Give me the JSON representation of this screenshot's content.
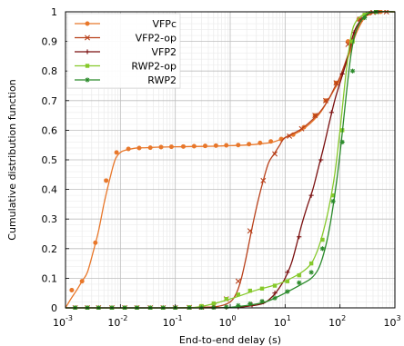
{
  "chart_data": {
    "type": "line",
    "xlabel": "End-to-end delay (s)",
    "ylabel": "Cumulative distribution function",
    "xscale": "log",
    "xlim": [
      0.001,
      1000
    ],
    "ylim": [
      0,
      1
    ],
    "grid": true,
    "legend_position": "top-left",
    "x_ticks": [
      {
        "value": 0.001,
        "base": "10",
        "exp": "-3"
      },
      {
        "value": 0.01,
        "base": "10",
        "exp": "-2"
      },
      {
        "value": 0.1,
        "base": "10",
        "exp": "-1"
      },
      {
        "value": 1,
        "base": "10",
        "exp": "0"
      },
      {
        "value": 10,
        "base": "10",
        "exp": "1"
      },
      {
        "value": 100,
        "base": "10",
        "exp": "2"
      },
      {
        "value": 1000,
        "base": "10",
        "exp": "3"
      }
    ],
    "y_ticks": [
      {
        "value": 0,
        "label": "0"
      },
      {
        "value": 0.1,
        "label": "0.1"
      },
      {
        "value": 0.2,
        "label": "0.2"
      },
      {
        "value": 0.3,
        "label": "0.3"
      },
      {
        "value": 0.4,
        "label": "0.4"
      },
      {
        "value": 0.5,
        "label": "0.5"
      },
      {
        "value": 0.6,
        "label": "0.6"
      },
      {
        "value": 0.7,
        "label": "0.7"
      },
      {
        "value": 0.8,
        "label": "0.8"
      },
      {
        "value": 0.9,
        "label": "0.9"
      },
      {
        "value": 1,
        "label": "1"
      }
    ],
    "series": [
      {
        "name": "VFPc",
        "color": "#e8772a",
        "marker": "circle",
        "x": [
          0.001,
          0.00125,
          0.0016,
          0.002,
          0.0025,
          0.0032,
          0.004,
          0.005,
          0.0063,
          0.008,
          0.01,
          0.0126,
          0.0158,
          0.02,
          0.03,
          0.05,
          0.1,
          0.2,
          0.5,
          1,
          2,
          4,
          6,
          10,
          20,
          40,
          60,
          80,
          100,
          150,
          200,
          300,
          500,
          1000
        ],
        "y": [
          0,
          0.03,
          0.06,
          0.09,
          0.12,
          0.19,
          0.26,
          0.35,
          0.43,
          0.5,
          0.525,
          0.533,
          0.537,
          0.54,
          0.541,
          0.543,
          0.544,
          0.545,
          0.546,
          0.548,
          0.55,
          0.555,
          0.56,
          0.575,
          0.6,
          0.65,
          0.7,
          0.74,
          0.77,
          0.86,
          0.93,
          0.985,
          0.998,
          1.0
        ],
        "markers_x": [
          0.0013,
          0.002,
          0.0035,
          0.0055,
          0.0085,
          0.014,
          0.022,
          0.035,
          0.055,
          0.085,
          0.14,
          0.22,
          0.35,
          0.55,
          0.85,
          1.4,
          2.2,
          3.5,
          5.5,
          8.5,
          14,
          22,
          35,
          55,
          85,
          140,
          220,
          350,
          550
        ],
        "markers_y": [
          0.06,
          0.09,
          0.22,
          0.43,
          0.525,
          0.537,
          0.54,
          0.541,
          0.543,
          0.544,
          0.545,
          0.546,
          0.547,
          0.548,
          0.549,
          0.55,
          0.553,
          0.557,
          0.562,
          0.57,
          0.585,
          0.61,
          0.65,
          0.7,
          0.76,
          0.9,
          0.975,
          0.995,
          1.0
        ]
      },
      {
        "name": "VFP2-op",
        "color": "#b8401a",
        "marker": "x",
        "x": [
          0.001,
          0.01,
          0.1,
          0.3,
          0.6,
          1,
          1.3,
          1.6,
          2,
          2.5,
          3.2,
          4,
          5,
          6.3,
          8,
          10,
          20,
          40,
          60,
          80,
          100,
          150,
          200,
          300,
          500,
          1000
        ],
        "y": [
          0,
          0,
          0,
          0.002,
          0.005,
          0.02,
          0.05,
          0.1,
          0.18,
          0.27,
          0.36,
          0.43,
          0.49,
          0.52,
          0.55,
          0.575,
          0.605,
          0.655,
          0.7,
          0.745,
          0.78,
          0.87,
          0.94,
          0.99,
          1.0,
          1.0
        ],
        "markers_x": [
          0.0015,
          0.0025,
          0.004,
          0.007,
          0.012,
          0.02,
          0.035,
          0.06,
          0.1,
          0.18,
          0.3,
          0.5,
          0.85,
          1.4,
          2.3,
          4,
          6.5,
          12,
          20,
          35,
          55,
          85,
          140,
          230,
          400,
          700
        ],
        "markers_y": [
          0,
          0,
          0,
          0,
          0,
          0,
          0,
          0,
          0,
          0.001,
          0.002,
          0.006,
          0.03,
          0.09,
          0.26,
          0.43,
          0.52,
          0.58,
          0.605,
          0.65,
          0.7,
          0.76,
          0.89,
          0.975,
          0.998,
          1.0
        ]
      },
      {
        "name": "VFP2",
        "color": "#7a0f0f",
        "marker": "plus",
        "x": [
          0.001,
          0.1,
          1,
          2,
          4,
          6,
          8,
          10,
          13,
          16,
          20,
          25,
          32,
          40,
          50,
          63,
          80,
          100,
          130,
          160,
          200,
          300,
          500,
          1000
        ],
        "y": [
          0,
          0,
          0.001,
          0.005,
          0.015,
          0.04,
          0.07,
          0.1,
          0.15,
          0.21,
          0.28,
          0.34,
          0.4,
          0.47,
          0.54,
          0.62,
          0.7,
          0.76,
          0.83,
          0.9,
          0.95,
          0.99,
          1.0,
          1.0
        ],
        "markers_x": [
          0.0015,
          0.0025,
          0.004,
          0.007,
          0.012,
          0.02,
          0.035,
          0.06,
          0.1,
          0.18,
          0.3,
          0.5,
          0.85,
          1.4,
          2.5,
          4,
          6.5,
          11,
          18,
          30,
          45,
          70,
          110,
          180,
          300,
          500
        ],
        "markers_y": [
          0,
          0,
          0,
          0,
          0,
          0,
          0,
          0,
          0,
          0,
          0,
          0,
          0.001,
          0.003,
          0.01,
          0.02,
          0.05,
          0.12,
          0.24,
          0.38,
          0.5,
          0.66,
          0.79,
          0.93,
          0.99,
          1.0
        ]
      },
      {
        "name": "RWP2-op",
        "color": "#86c92b",
        "marker": "square",
        "x": [
          0.001,
          0.1,
          0.3,
          1,
          3,
          6,
          10,
          20,
          30,
          40,
          50,
          63,
          80,
          100,
          130,
          160,
          200,
          300,
          500,
          1000
        ],
        "y": [
          0,
          0,
          0.005,
          0.03,
          0.06,
          0.075,
          0.09,
          0.12,
          0.15,
          0.2,
          0.26,
          0.34,
          0.45,
          0.6,
          0.8,
          0.92,
          0.97,
          0.995,
          1.0,
          1.0
        ],
        "markers_x": [
          0.0015,
          0.0025,
          0.004,
          0.007,
          0.012,
          0.02,
          0.035,
          0.06,
          0.1,
          0.18,
          0.3,
          0.5,
          0.85,
          1.4,
          2.3,
          3.8,
          6.5,
          11,
          18,
          30,
          48,
          75,
          110,
          170,
          280,
          450
        ],
        "markers_y": [
          0,
          0,
          0,
          0,
          0,
          0,
          0,
          0,
          0,
          0.002,
          0.006,
          0.015,
          0.03,
          0.045,
          0.058,
          0.065,
          0.075,
          0.09,
          0.11,
          0.15,
          0.23,
          0.38,
          0.6,
          0.9,
          0.99,
          1.0
        ]
      },
      {
        "name": "RWP2",
        "color": "#2a8a2a",
        "marker": "star",
        "x": [
          0.001,
          0.3,
          1,
          2,
          4,
          6,
          10,
          20,
          30,
          40,
          50,
          63,
          80,
          100,
          130,
          160,
          200,
          300,
          500,
          1000
        ],
        "y": [
          0,
          0,
          0.002,
          0.008,
          0.018,
          0.03,
          0.05,
          0.08,
          0.1,
          0.13,
          0.18,
          0.26,
          0.38,
          0.52,
          0.72,
          0.86,
          0.94,
          0.99,
          1.0,
          1.0
        ],
        "markers_x": [
          0.0015,
          0.0025,
          0.004,
          0.007,
          0.012,
          0.02,
          0.035,
          0.06,
          0.1,
          0.18,
          0.3,
          0.5,
          0.85,
          1.4,
          2.3,
          3.8,
          6.5,
          11,
          18,
          30,
          48,
          75,
          110,
          170,
          280,
          450
        ],
        "markers_y": [
          0,
          0,
          0,
          0,
          0,
          0,
          0,
          0,
          0,
          0,
          0,
          0.001,
          0.003,
          0.008,
          0.014,
          0.022,
          0.033,
          0.055,
          0.085,
          0.12,
          0.2,
          0.36,
          0.56,
          0.8,
          0.98,
          1.0
        ]
      }
    ]
  }
}
